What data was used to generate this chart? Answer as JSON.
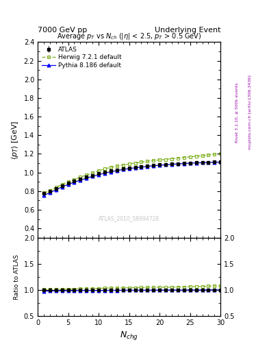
{
  "title_top_left": "7000 GeV pp",
  "title_top_right": "Underlying Event",
  "plot_title": "Average $p_T$ vs $N_{ch}$ ($|\\eta|$ < 2.5, $p_T$ > 0.5 GeV)",
  "xlabel": "$N_{chg}$",
  "ylabel_main": "$\\langle p_T \\rangle$ [GeV]",
  "ylabel_ratio": "Ratio to ATLAS",
  "watermark": "ATLAS_2010_S8994728",
  "right_label_top": "Rivet 3.1.10, ≥ 500k events",
  "right_label_bot": "mcplots.cern.ch [arXiv:1306.3436]",
  "ylim_main": [
    0.3,
    2.4
  ],
  "ylim_ratio": [
    0.5,
    2.0
  ],
  "xlim": [
    0,
    30
  ],
  "atlas_x": [
    1,
    2,
    3,
    4,
    5,
    6,
    7,
    8,
    9,
    10,
    11,
    12,
    13,
    14,
    15,
    16,
    17,
    18,
    19,
    20,
    21,
    22,
    23,
    24,
    25,
    26,
    27,
    28,
    29,
    30
  ],
  "atlas_y": [
    0.773,
    0.8,
    0.83,
    0.86,
    0.888,
    0.91,
    0.93,
    0.95,
    0.97,
    0.99,
    1.005,
    1.018,
    1.03,
    1.04,
    1.05,
    1.058,
    1.065,
    1.072,
    1.078,
    1.083,
    1.088,
    1.092,
    1.096,
    1.1,
    1.103,
    1.106,
    1.108,
    1.11,
    1.112,
    1.114
  ],
  "atlas_yerr": [
    0.012,
    0.01,
    0.009,
    0.008,
    0.007,
    0.007,
    0.007,
    0.007,
    0.007,
    0.007,
    0.007,
    0.007,
    0.007,
    0.007,
    0.007,
    0.007,
    0.007,
    0.007,
    0.007,
    0.007,
    0.007,
    0.007,
    0.007,
    0.007,
    0.007,
    0.007,
    0.007,
    0.007,
    0.007,
    0.007
  ],
  "herwig_x": [
    1,
    2,
    3,
    4,
    5,
    6,
    7,
    8,
    9,
    10,
    11,
    12,
    13,
    14,
    15,
    16,
    17,
    18,
    19,
    20,
    21,
    22,
    23,
    24,
    25,
    26,
    27,
    28,
    29,
    30
  ],
  "herwig_y": [
    0.78,
    0.808,
    0.84,
    0.872,
    0.9,
    0.925,
    0.95,
    0.972,
    0.995,
    1.018,
    1.038,
    1.055,
    1.068,
    1.08,
    1.092,
    1.102,
    1.112,
    1.12,
    1.128,
    1.135,
    1.14,
    1.148,
    1.155,
    1.16,
    1.168,
    1.175,
    1.18,
    1.188,
    1.195,
    1.2
  ],
  "pythia_x": [
    1,
    2,
    3,
    4,
    5,
    6,
    7,
    8,
    9,
    10,
    11,
    12,
    13,
    14,
    15,
    16,
    17,
    18,
    19,
    20,
    21,
    22,
    23,
    24,
    25,
    26,
    27,
    28,
    29,
    30
  ],
  "pythia_y": [
    0.755,
    0.782,
    0.815,
    0.845,
    0.872,
    0.896,
    0.918,
    0.938,
    0.958,
    0.976,
    0.993,
    1.008,
    1.02,
    1.032,
    1.042,
    1.05,
    1.058,
    1.065,
    1.072,
    1.078,
    1.083,
    1.088,
    1.092,
    1.096,
    1.1,
    1.103,
    1.106,
    1.108,
    1.11,
    1.112
  ],
  "atlas_color": "#000000",
  "herwig_color": "#80b020",
  "pythia_color": "#0000ff",
  "atlas_band_color": "#ffff80",
  "legend_atlas": "ATLAS",
  "legend_herwig": "Herwig 7.2.1 default",
  "legend_pythia": "Pythia 8.186 default"
}
